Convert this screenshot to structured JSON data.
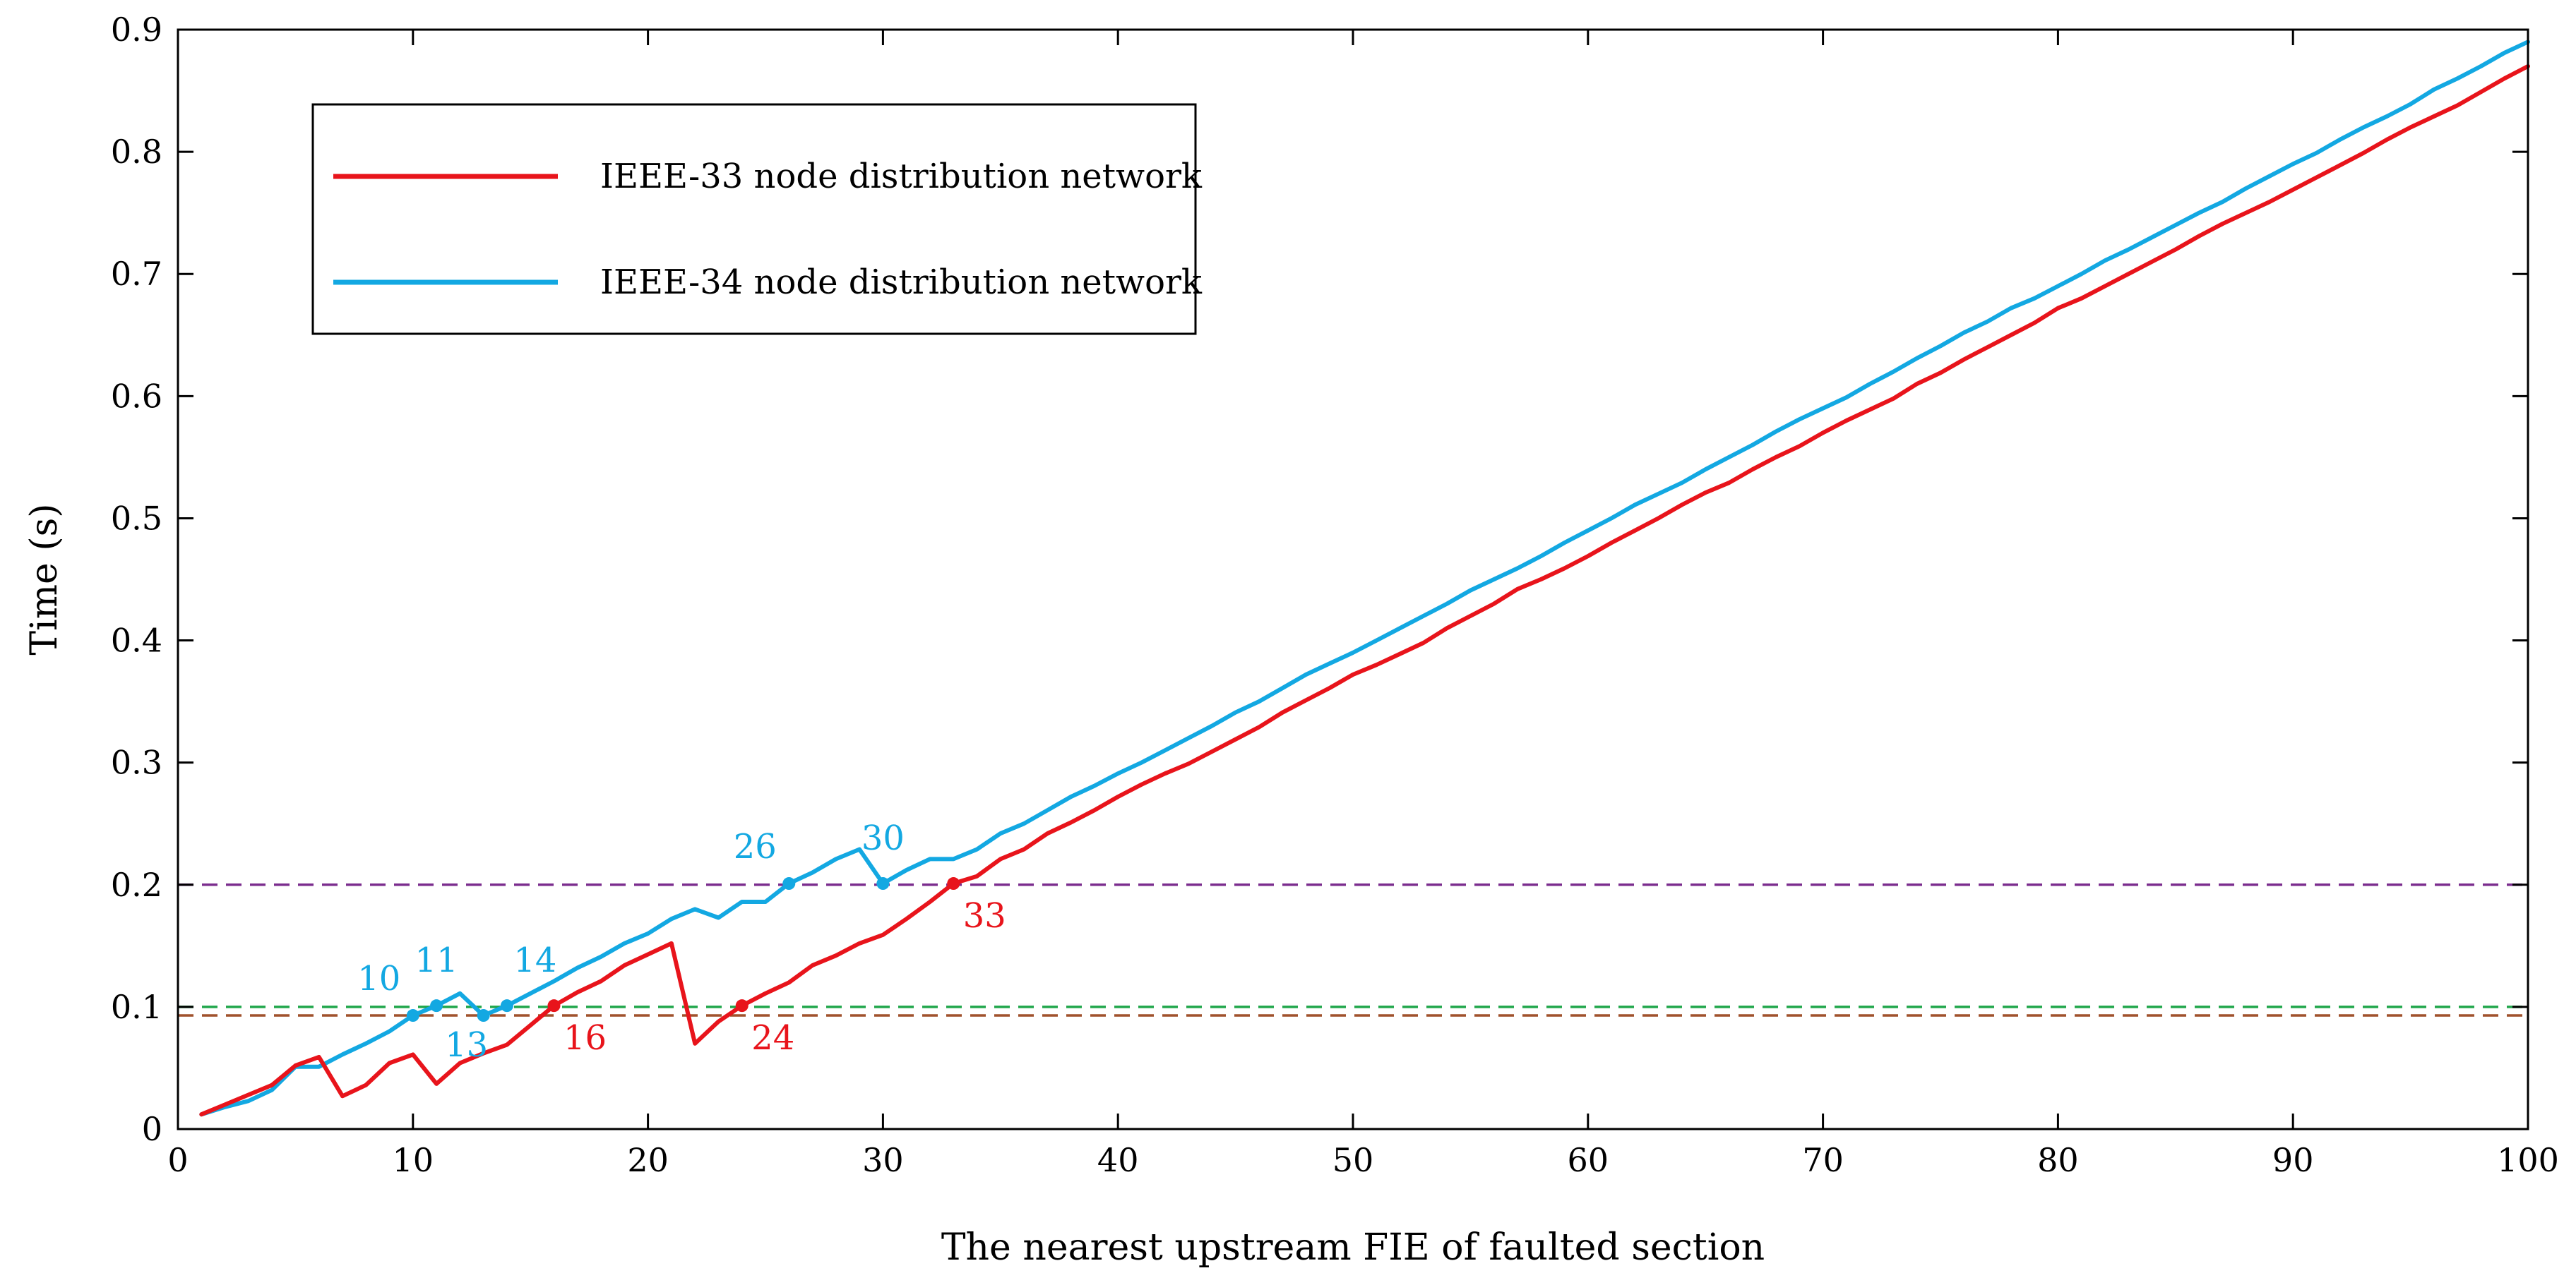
{
  "chart_data": {
    "type": "line",
    "title": "",
    "xlabel": "The nearest upstream FIE of faulted section",
    "ylabel": "Time (s)",
    "xlim": [
      0,
      100
    ],
    "ylim": [
      0,
      0.9
    ],
    "xticks": [
      0,
      10,
      20,
      30,
      40,
      50,
      60,
      70,
      80,
      90,
      100
    ],
    "yticks": [
      0,
      0.1,
      0.2,
      0.3,
      0.4,
      0.5,
      0.6,
      0.7,
      0.8,
      0.9
    ],
    "xtick_labels": [
      "0",
      "10",
      "20",
      "30",
      "40",
      "50",
      "60",
      "70",
      "80",
      "90",
      "100"
    ],
    "ytick_labels": [
      "0",
      "0.1",
      "0.2",
      "0.3",
      "0.4",
      "0.5",
      "0.6",
      "0.7",
      "0.8",
      "0.9"
    ],
    "grid": false,
    "legend_position": "top-left",
    "series": [
      {
        "name": "IEEE-33 node distribution network",
        "color": "#e8141b",
        "x": [
          1,
          2,
          3,
          4,
          5,
          6,
          7,
          8,
          9,
          10,
          11,
          12,
          13,
          14,
          15,
          16,
          17,
          18,
          19,
          20,
          21,
          22,
          23,
          24,
          25,
          26,
          27,
          28,
          29,
          30,
          31,
          32,
          33,
          34,
          35,
          36,
          37,
          38,
          39,
          40,
          41,
          42,
          43,
          44,
          45,
          46,
          47,
          48,
          49,
          50,
          51,
          52,
          53,
          54,
          55,
          56,
          57,
          58,
          59,
          60,
          61,
          62,
          63,
          64,
          65,
          66,
          67,
          68,
          69,
          70,
          71,
          72,
          73,
          74,
          75,
          76,
          77,
          78,
          79,
          80,
          81,
          82,
          83,
          84,
          85,
          86,
          87,
          88,
          89,
          90,
          91,
          92,
          93,
          94,
          95,
          96,
          97,
          98,
          99,
          100
        ],
        "y": [
          0.012,
          0.02,
          0.028,
          0.036,
          0.052,
          0.059,
          0.027,
          0.036,
          0.054,
          0.061,
          0.037,
          0.054,
          0.062,
          0.069,
          0.085,
          0.101,
          0.112,
          0.121,
          0.134,
          0.143,
          0.152,
          0.07,
          0.088,
          0.101,
          0.111,
          0.12,
          0.134,
          0.142,
          0.152,
          0.159,
          0.172,
          0.186,
          0.201,
          0.207,
          0.221,
          0.229,
          0.242,
          0.251,
          0.261,
          0.272,
          0.282,
          0.291,
          0.299,
          0.309,
          0.319,
          0.329,
          0.341,
          0.351,
          0.361,
          0.372,
          0.38,
          0.389,
          0.398,
          0.41,
          0.42,
          0.43,
          0.442,
          0.45,
          0.459,
          0.469,
          0.48,
          0.49,
          0.5,
          0.511,
          0.521,
          0.529,
          0.54,
          0.55,
          0.559,
          0.57,
          0.58,
          0.589,
          0.598,
          0.61,
          0.619,
          0.63,
          0.64,
          0.65,
          0.66,
          0.672,
          0.68,
          0.69,
          0.7,
          0.71,
          0.72,
          0.731,
          0.741,
          0.75,
          0.759,
          0.769,
          0.779,
          0.789,
          0.799,
          0.81,
          0.82,
          0.829,
          0.838,
          0.849,
          0.86,
          0.87
        ]
      },
      {
        "name": "IEEE-34 node distribution network",
        "color": "#13a8e2",
        "x": [
          1,
          2,
          3,
          4,
          5,
          6,
          7,
          8,
          9,
          10,
          11,
          12,
          13,
          14,
          15,
          16,
          17,
          18,
          19,
          20,
          21,
          22,
          23,
          24,
          25,
          26,
          27,
          28,
          29,
          30,
          31,
          32,
          33,
          34,
          35,
          36,
          37,
          38,
          39,
          40,
          41,
          42,
          43,
          44,
          45,
          46,
          47,
          48,
          49,
          50,
          51,
          52,
          53,
          54,
          55,
          56,
          57,
          58,
          59,
          60,
          61,
          62,
          63,
          64,
          65,
          66,
          67,
          68,
          69,
          70,
          71,
          72,
          73,
          74,
          75,
          76,
          77,
          78,
          79,
          80,
          81,
          82,
          83,
          84,
          85,
          86,
          87,
          88,
          89,
          90,
          91,
          92,
          93,
          94,
          95,
          96,
          97,
          98,
          99,
          100
        ],
        "y": [
          0.012,
          0.018,
          0.023,
          0.032,
          0.051,
          0.051,
          0.061,
          0.07,
          0.08,
          0.093,
          0.101,
          0.111,
          0.093,
          0.101,
          0.111,
          0.121,
          0.132,
          0.141,
          0.152,
          0.16,
          0.172,
          0.18,
          0.173,
          0.186,
          0.186,
          0.201,
          0.21,
          0.221,
          0.229,
          0.201,
          0.212,
          0.221,
          0.221,
          0.229,
          0.242,
          0.25,
          0.261,
          0.272,
          0.281,
          0.291,
          0.3,
          0.31,
          0.32,
          0.33,
          0.341,
          0.35,
          0.361,
          0.372,
          0.381,
          0.39,
          0.4,
          0.41,
          0.42,
          0.43,
          0.441,
          0.45,
          0.459,
          0.469,
          0.48,
          0.49,
          0.5,
          0.511,
          0.52,
          0.529,
          0.54,
          0.55,
          0.56,
          0.571,
          0.581,
          0.59,
          0.599,
          0.61,
          0.62,
          0.631,
          0.641,
          0.652,
          0.661,
          0.672,
          0.68,
          0.69,
          0.7,
          0.711,
          0.72,
          0.73,
          0.74,
          0.75,
          0.759,
          0.77,
          0.78,
          0.79,
          0.799,
          0.81,
          0.82,
          0.829,
          0.839,
          0.851,
          0.86,
          0.87,
          0.881,
          0.89
        ]
      }
    ],
    "reference_lines": [
      {
        "y": 0.2,
        "color": "#7b2d8e",
        "style": "dashed"
      },
      {
        "y": 0.1,
        "color": "#1fa64a",
        "style": "dashed"
      },
      {
        "y": 0.093,
        "color": "#a0522d",
        "style": "dashed"
      }
    ],
    "annotations": [
      {
        "label": "10",
        "x": 10,
        "y": 0.093,
        "series": "IEEE-34 node distribution network",
        "color": "#13a8e2",
        "anchor": "upper-left"
      },
      {
        "label": "11",
        "x": 11,
        "y": 0.101,
        "series": "IEEE-34 node distribution network",
        "color": "#13a8e2",
        "anchor": "above"
      },
      {
        "label": "13",
        "x": 13,
        "y": 0.093,
        "series": "IEEE-34 node distribution network",
        "color": "#13a8e2",
        "anchor": "below-left"
      },
      {
        "label": "14",
        "x": 14,
        "y": 0.101,
        "series": "IEEE-34 node distribution network",
        "color": "#13a8e2",
        "anchor": "upper-right"
      },
      {
        "label": "26",
        "x": 26,
        "y": 0.201,
        "series": "IEEE-34 node distribution network",
        "color": "#13a8e2",
        "anchor": "upper-left"
      },
      {
        "label": "30",
        "x": 30,
        "y": 0.201,
        "series": "IEEE-34 node distribution network",
        "color": "#13a8e2",
        "anchor": "above"
      },
      {
        "label": "16",
        "x": 16,
        "y": 0.101,
        "series": "IEEE-33 node distribution network",
        "color": "#e8141b",
        "anchor": "below-right"
      },
      {
        "label": "24",
        "x": 24,
        "y": 0.101,
        "series": "IEEE-33 node distribution network",
        "color": "#e8141b",
        "anchor": "below-right"
      },
      {
        "label": "33",
        "x": 33,
        "y": 0.201,
        "series": "IEEE-33 node distribution network",
        "color": "#e8141b",
        "anchor": "below-right"
      }
    ]
  }
}
